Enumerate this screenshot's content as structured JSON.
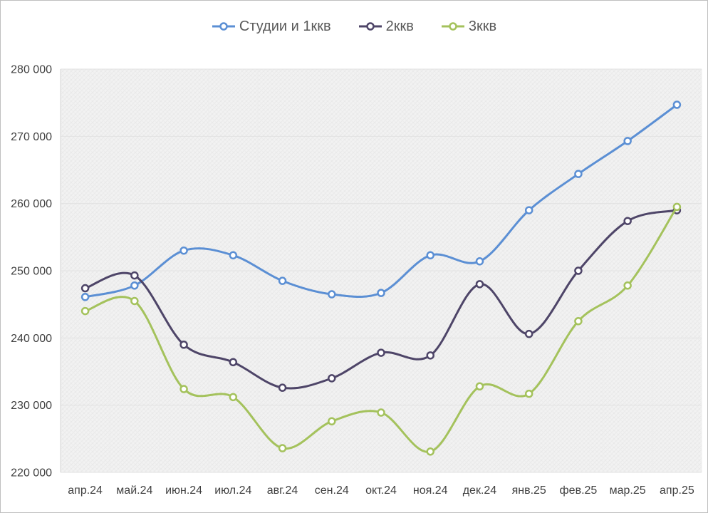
{
  "colors": {
    "series1": "#5B8FD4",
    "series2": "#4E4568",
    "series3": "#A4C25C",
    "axis_text": "#404040",
    "legend_text": "#595959",
    "plot_bg": "#f2f2f2",
    "gridline_h": "#e2e2e2",
    "gridline_v": "#ededed",
    "axis_line": "#d6d6d6",
    "frame": "#bfbfbf",
    "marker_fill": "#ffffff"
  },
  "legend": {
    "items": [
      {
        "label": "Студии и 1ккв",
        "color": "#5B8FD4"
      },
      {
        "label": "2ккв",
        "color": "#4E4568"
      },
      {
        "label": "3ккв",
        "color": "#A4C25C"
      }
    ]
  },
  "chart_data": {
    "type": "line",
    "title": "",
    "xlabel": "",
    "ylabel": "",
    "smooth": true,
    "marker": "open-circle",
    "grid": "horizontal-major + faint vertical category boundaries",
    "legend_position": "top-center",
    "ylim": [
      220000,
      280000
    ],
    "ytick_step": 10000,
    "ytick_labels": [
      "220 000",
      "230 000",
      "240 000",
      "250 000",
      "260 000",
      "270 000",
      "280 000"
    ],
    "categories": [
      "апр.24",
      "май.24",
      "июн.24",
      "июл.24",
      "авг.24",
      "сен.24",
      "окт.24",
      "ноя.24",
      "дек.24",
      "янв.25",
      "фев.25",
      "мар.25",
      "апр.25"
    ],
    "series": [
      {
        "name": "Студии и 1ккв",
        "color": "#5B8FD4",
        "values": [
          246100,
          247800,
          253000,
          252300,
          248500,
          246500,
          246700,
          252300,
          251400,
          259000,
          264400,
          269300,
          274700
        ]
      },
      {
        "name": "2ккв",
        "color": "#4E4568",
        "values": [
          247400,
          249300,
          239000,
          236400,
          232600,
          234000,
          237800,
          237400,
          248000,
          240600,
          250000,
          257400,
          259000
        ]
      },
      {
        "name": "3ккв",
        "color": "#A4C25C",
        "values": [
          244000,
          245500,
          232400,
          231200,
          223600,
          227600,
          228900,
          223100,
          232800,
          231700,
          242500,
          247800,
          259500
        ]
      }
    ]
  }
}
